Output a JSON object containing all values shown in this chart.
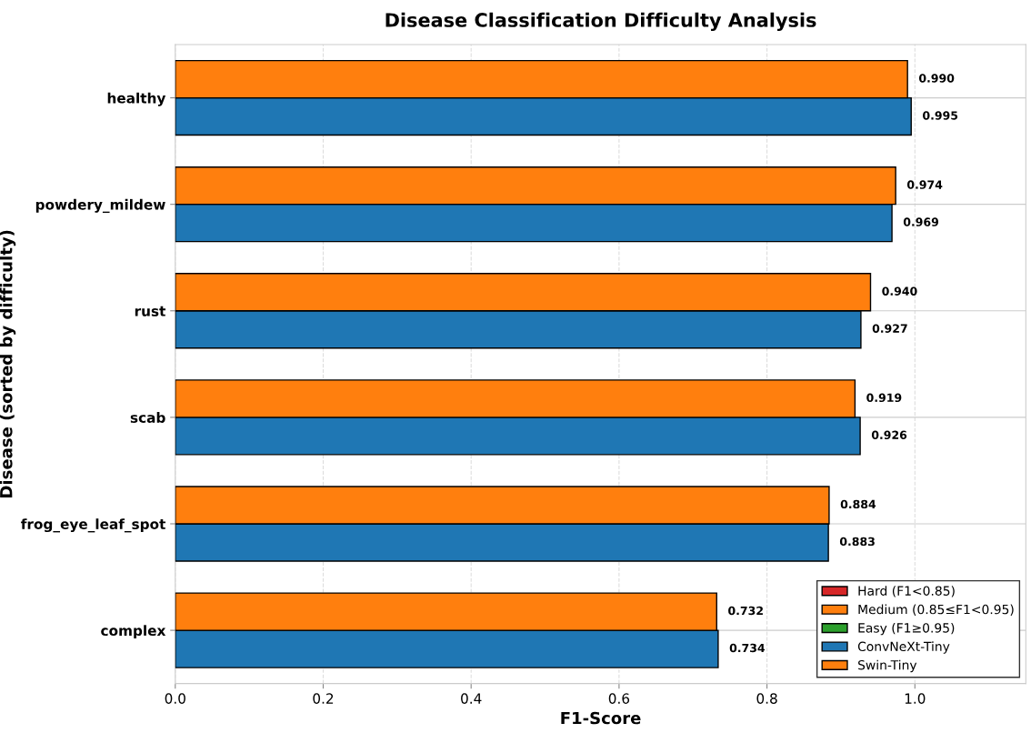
{
  "chart_data": {
    "type": "bar",
    "orientation": "horizontal",
    "title": "Disease Classification Difficulty Analysis",
    "xlabel": "F1-Score",
    "ylabel": "Disease (sorted by difficulty)",
    "categories": [
      "healthy",
      "powdery_mildew",
      "rust",
      "scab",
      "frog_eye_leaf_spot",
      "complex"
    ],
    "series": [
      {
        "name": "Hard (F1<0.85)",
        "color": "#d62728",
        "values": [
          null,
          null,
          null,
          null,
          null,
          null
        ]
      },
      {
        "name": "Medium (0.85≤F1<0.95)",
        "color": "#ff7f0e",
        "values": [
          null,
          null,
          null,
          null,
          null,
          null
        ]
      },
      {
        "name": "Easy (F1≥0.95)",
        "color": "#2ca02c",
        "values": [
          null,
          null,
          null,
          null,
          null,
          null
        ]
      },
      {
        "name": "ConvNeXt-Tiny",
        "color": "#1f77b4",
        "values": [
          0.995,
          0.969,
          0.927,
          0.926,
          0.883,
          0.734
        ],
        "value_labels": [
          "0.995",
          "0.969",
          "0.927",
          "0.926",
          "0.883",
          "0.734"
        ]
      },
      {
        "name": "Swin-Tiny",
        "color": "#ff7f0e",
        "values": [
          0.99,
          0.974,
          0.94,
          0.919,
          0.884,
          0.732
        ],
        "value_labels": [
          "0.990",
          "0.974",
          "0.940",
          "0.919",
          "0.884",
          "0.732"
        ]
      }
    ],
    "xlim": [
      0,
      1.15
    ],
    "xticks": [
      {
        "value": 0,
        "label": "0.0"
      },
      0.2,
      0.4,
      0.6,
      0.8,
      {
        "value": 1,
        "label": "1.0"
      }
    ],
    "grid": true,
    "legend": "bottom right"
  }
}
